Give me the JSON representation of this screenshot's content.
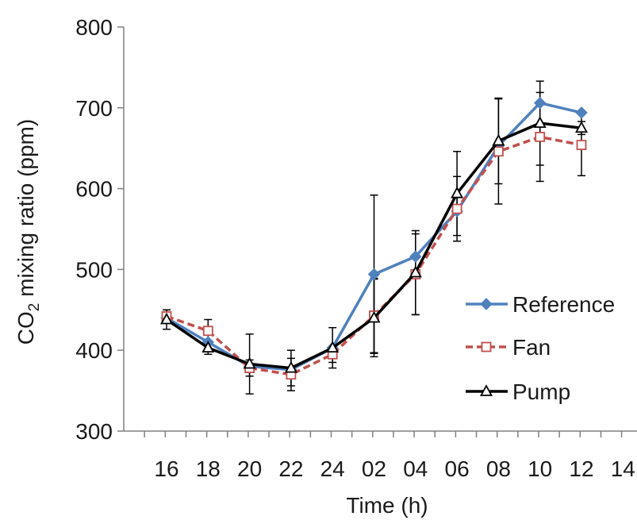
{
  "chart_data": {
    "type": "line",
    "xlabel": "Time (h)",
    "ylabel_main": "CO",
    "ylabel_sub": "2",
    "ylabel_rest": " mixing ratio (ppm)",
    "ylim": [
      300,
      800
    ],
    "yticks": [
      300,
      400,
      500,
      600,
      700,
      800
    ],
    "xtick_labels": [
      "16",
      "18",
      "20",
      "22",
      "24",
      "02",
      "04",
      "06",
      "08",
      "10",
      "12",
      "14"
    ],
    "categories": [
      "16",
      "18",
      "20",
      "22",
      "24",
      "02",
      "04",
      "06",
      "08",
      "10",
      "12"
    ],
    "grid": false,
    "legend_position": "right",
    "series": [
      {
        "name": "Reference",
        "color": "#4f81bd",
        "marker": "diamond",
        "dash": "solid",
        "values": [
          440,
          410,
          380,
          376,
          403,
          494,
          516,
          572,
          653,
          706,
          694
        ],
        "errors": [
          0,
          0,
          0,
          0,
          0,
          0,
          0,
          0,
          0,
          0,
          0
        ]
      },
      {
        "name": "Fan",
        "color": "#c0504d",
        "marker": "square",
        "dash": "dashed",
        "values": [
          442,
          424,
          378,
          370,
          395,
          443,
          494,
          575,
          646,
          664,
          654
        ],
        "errors": [
          8,
          14,
          10,
          20,
          10,
          46,
          50,
          40,
          65,
          55,
          38
        ]
      },
      {
        "name": "Pump",
        "color": "#000000",
        "marker": "triangle",
        "dash": "solid",
        "values": [
          438,
          403,
          383,
          378,
          403,
          440,
          496,
          594,
          659,
          681,
          675
        ],
        "errors": [
          12,
          8,
          37,
          22,
          25,
          48,
          52,
          52,
          53,
          52,
          8
        ]
      }
    ],
    "extra_error_bars": [
      {
        "category": "02",
        "value": 494,
        "error": 98
      }
    ]
  }
}
